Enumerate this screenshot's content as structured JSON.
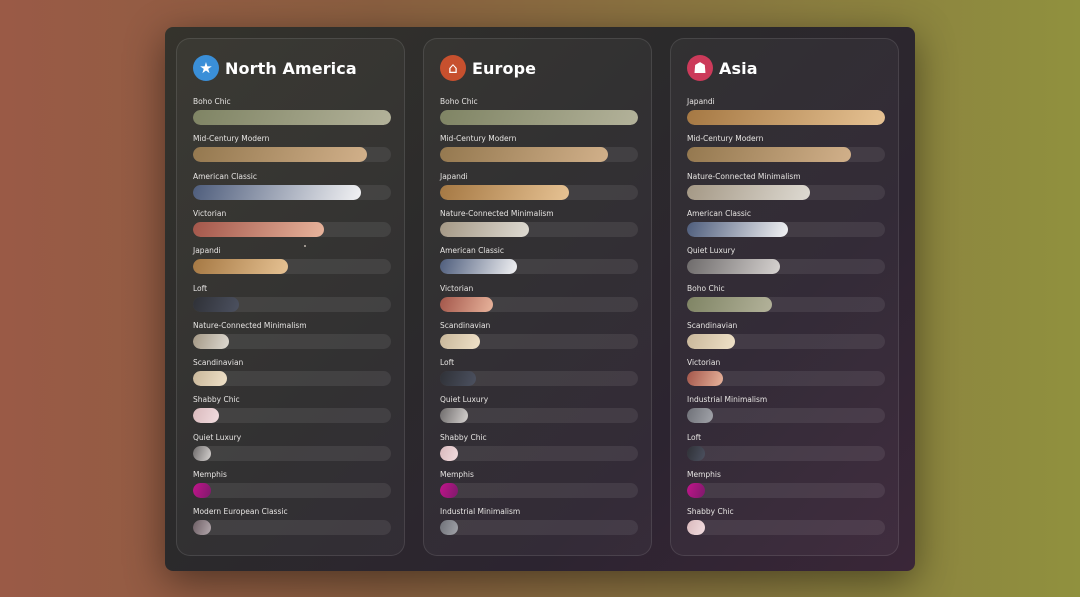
{
  "chart_data": {
    "type": "bar",
    "orientation": "horizontal",
    "panels": [
      {
        "title": "North America",
        "icon": "statue-of-liberty-icon",
        "categories": [
          "Boho Chic",
          "Mid-Century Modern",
          "American Classic",
          "Victorian",
          "Japandi",
          "Loft",
          "Nature-Connected Minimalism",
          "Scandinavian",
          "Shabby Chic",
          "Quiet Luxury",
          "Memphis",
          "Modern European Classic"
        ],
        "values": [
          100,
          88,
          85,
          66,
          48,
          23,
          18,
          17,
          13,
          9,
          9,
          9
        ]
      },
      {
        "title": "Europe",
        "icon": "classical-building-icon",
        "categories": [
          "Boho Chic",
          "Mid-Century Modern",
          "Japandi",
          "Nature-Connected Minimalism",
          "American Classic",
          "Victorian",
          "Scandinavian",
          "Loft",
          "Quiet Luxury",
          "Shabby Chic",
          "Memphis",
          "Industrial Minimalism"
        ],
        "values": [
          100,
          85,
          65,
          45,
          39,
          27,
          20,
          18,
          14,
          9,
          9,
          9
        ]
      },
      {
        "title": "Asia",
        "icon": "pagoda-icon",
        "categories": [
          "Japandi",
          "Mid-Century Modern",
          "Nature-Connected Minimalism",
          "American Classic",
          "Quiet Luxury",
          "Boho Chic",
          "Scandinavian",
          "Victorian",
          "Industrial Minimalism",
          "Loft",
          "Memphis",
          "Shabby Chic"
        ],
        "values": [
          100,
          83,
          62,
          51,
          47,
          43,
          24,
          18,
          13,
          9,
          9,
          9
        ]
      }
    ],
    "xlim": [
      0,
      100
    ],
    "grid": false,
    "legend": "none"
  },
  "style_colors": {
    "Boho Chic": [
      "#7f8464",
      "#b3b29a"
    ],
    "Mid-Century Modern": [
      "#94784f",
      "#d1b08a"
    ],
    "American Classic": [
      "#4e5d7c",
      "#f2f2f4"
    ],
    "Victorian": [
      "#a3564a",
      "#e8b49c"
    ],
    "Japandi": [
      "#a57843",
      "#e6c293"
    ],
    "Loft": [
      "#2f3137",
      "#4c5160"
    ],
    "Nature-Connected Minimalism": [
      "#a49885",
      "#dedad2"
    ],
    "Scandinavian": [
      "#c9b79a",
      "#efe1c8"
    ],
    "Shabby Chic": [
      "#d9b9bc",
      "#f2dde0"
    ],
    "Quiet Luxury": [
      "#6e6b6b",
      "#d6d2d0"
    ],
    "Memphis": [
      "#c2148b",
      "#7d1a6b"
    ],
    "Modern European Classic": [
      "#6d5e64",
      "#b4a8ad"
    ],
    "Industrial Minimalism": [
      "#6f7178",
      "#a2a4aa"
    ]
  },
  "panel_icon_colors": [
    "#3a8fd8",
    "#c7502e",
    "#cc3a5a"
  ]
}
